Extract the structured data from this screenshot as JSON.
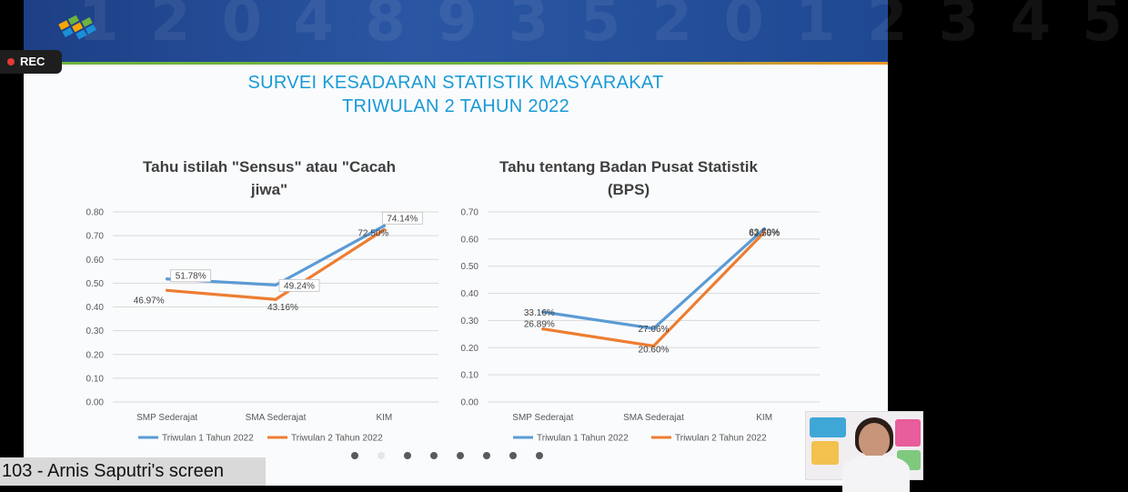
{
  "slide": {
    "title_line1": "SURVEI KESADARAN STATISTIK MASYARAKAT",
    "title_line2": "TRIWULAN 2 TAHUN 2022",
    "banner_digits": "1 2 0 4 8 9 3 5 2 0 1 2 3 4 5",
    "colors": {
      "banner": "#1d3f85",
      "title": "#1a9ad6",
      "series1": "#5b9bd5",
      "series2": "#ed7d31"
    }
  },
  "overlay": {
    "rec_label": "REC",
    "screen_label": "103 - Arnis Saputri's screen"
  },
  "chart_data": [
    {
      "type": "line",
      "title_line1": "Tahu istilah \"Sensus\" atau \"Cacah",
      "title_line2": "jiwa\"",
      "categories": [
        "SMP Sederajat",
        "SMA Sederajat",
        "KIM"
      ],
      "ylim": [
        0,
        0.8
      ],
      "yticks": [
        "0.00",
        "0.10",
        "0.20",
        "0.30",
        "0.40",
        "0.50",
        "0.60",
        "0.70",
        "0.80"
      ],
      "grid": true,
      "legend": "bottom",
      "series": [
        {
          "name": "Triwulan 1 Tahun 2022",
          "values": [
            0.5178,
            0.4924,
            0.7414
          ],
          "labels": [
            "51.78%",
            "49.24%",
            "74.14%"
          ]
        },
        {
          "name": "Triwulan 2 Tahun 2022",
          "values": [
            0.4697,
            0.4316,
            0.725
          ],
          "labels": [
            "46.97%",
            "43.16%",
            "72.50%"
          ]
        }
      ]
    },
    {
      "type": "line",
      "title_line1": "Tahu tentang Badan Pusat Statistik",
      "title_line2": "(BPS)",
      "categories": [
        "SMP Sederajat",
        "SMA Sederajat",
        "KIM"
      ],
      "ylim": [
        0,
        0.7
      ],
      "yticks": [
        "0.00",
        "0.10",
        "0.20",
        "0.30",
        "0.40",
        "0.50",
        "0.60",
        "0.70"
      ],
      "grid": true,
      "legend": "bottom",
      "series": [
        {
          "name": "Triwulan 1 Tahun 2022",
          "values": [
            0.3316,
            0.2706,
            0.6379
          ],
          "labels": [
            "33.16%",
            "27.06%",
            "63.79%"
          ]
        },
        {
          "name": "Triwulan 2 Tahun 2022",
          "values": [
            0.2689,
            0.206,
            0.625
          ],
          "labels": [
            "26.89%",
            "20.60%",
            "62.50%"
          ]
        }
      ]
    }
  ]
}
